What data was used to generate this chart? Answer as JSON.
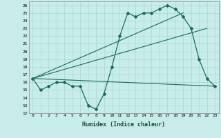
{
  "xlabel": "Humidex (Indice chaleur)",
  "background_color": "#c8ecea",
  "line_color": "#1a6b5a",
  "xlim_min": -0.5,
  "xlim_max": 23.5,
  "ylim_min": 12,
  "ylim_max": 26.5,
  "xticks": [
    0,
    1,
    2,
    3,
    4,
    5,
    6,
    7,
    8,
    9,
    10,
    11,
    12,
    13,
    14,
    15,
    16,
    17,
    18,
    19,
    20,
    21,
    22,
    23
  ],
  "yticks": [
    12,
    13,
    14,
    15,
    16,
    17,
    18,
    19,
    20,
    21,
    22,
    23,
    24,
    25,
    26
  ],
  "main_line": {
    "x": [
      0,
      1,
      2,
      3,
      4,
      5,
      6,
      7,
      8,
      9,
      10,
      11,
      12,
      13,
      14,
      15,
      16,
      17,
      18,
      19,
      20,
      21,
      22,
      23
    ],
    "y": [
      16.5,
      15.0,
      15.5,
      16.0,
      16.0,
      15.5,
      15.5,
      13.0,
      12.5,
      14.5,
      18.0,
      22.0,
      25.0,
      24.5,
      25.0,
      25.0,
      25.5,
      26.0,
      25.5,
      24.5,
      23.0,
      19.0,
      16.5,
      15.5
    ]
  },
  "straight_lines": [
    {
      "x": [
        0,
        19
      ],
      "y": [
        16.5,
        25.0
      ]
    },
    {
      "x": [
        0,
        22
      ],
      "y": [
        16.5,
        23.0
      ]
    },
    {
      "x": [
        0,
        23
      ],
      "y": [
        16.5,
        15.5
      ]
    }
  ]
}
